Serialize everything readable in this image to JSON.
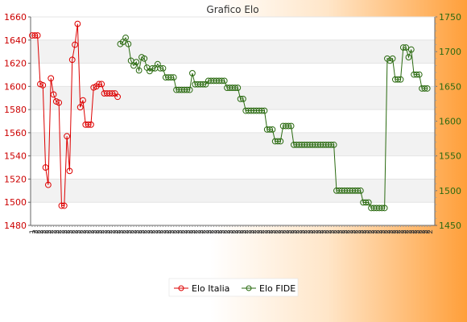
{
  "chart_data": {
    "type": "line",
    "title": "Grafico Elo",
    "x_tick_labels": [
      "1",
      "2",
      "2",
      "2",
      "2",
      "2",
      "2",
      "2",
      "2",
      "2",
      "2",
      "2",
      "2",
      "2",
      "2",
      "2",
      "2",
      "2",
      "2",
      "2",
      "2",
      "2",
      "2",
      "2",
      "2",
      "2",
      "2",
      "2",
      "2",
      "2",
      "2",
      "2",
      "2",
      "2",
      "2",
      "2",
      "2",
      "2",
      "2",
      "2",
      "2",
      "2",
      "2",
      "2",
      "2",
      "2",
      "2",
      "2",
      "2",
      "2",
      "2",
      "2",
      "2",
      "2",
      "2",
      "2",
      "2",
      "2",
      "2",
      "2",
      "2",
      "2",
      "2",
      "2",
      "2",
      "2",
      "2",
      "2",
      "2",
      "2",
      "2",
      "2",
      "2",
      "2",
      "2",
      "2",
      "2",
      "2",
      "2",
      "2",
      "2",
      "2",
      "2",
      "2",
      "2",
      "2",
      "2",
      "2",
      "2",
      "2",
      "2",
      "2",
      "2",
      "2",
      "2",
      "2",
      "2",
      "2",
      "2",
      "2",
      "2",
      "2",
      "2",
      "2",
      "2",
      "2",
      "2",
      "2",
      "2",
      "2",
      "2",
      "2",
      "2",
      "2",
      "2",
      "2",
      "2",
      "2",
      "2",
      "2",
      "2",
      "2",
      "2",
      "2",
      "2",
      "2",
      "2",
      "2",
      "2",
      "2",
      "2",
      "2",
      "2",
      "2",
      "2",
      "2",
      "2",
      "2",
      "2",
      "2",
      "2",
      "2",
      "2",
      "2",
      "2",
      "2",
      "2",
      "2",
      "2",
      "2"
    ],
    "y_left": {
      "min": 1480,
      "max": 1660,
      "ticks": [
        1480,
        1500,
        1520,
        1540,
        1560,
        1580,
        1600,
        1620,
        1640,
        1660
      ],
      "color": "#cc0000"
    },
    "y_right": {
      "min": 1450,
      "max": 1750,
      "ticks": [
        1450,
        1500,
        1550,
        1600,
        1650,
        1700,
        1750
      ],
      "color": "#2a6a10"
    },
    "grid": true,
    "legend_position": "bottom",
    "series": [
      {
        "name": "Elo Italia",
        "axis": "left",
        "color": "#dd0000",
        "points": [
          [
            0,
            1644
          ],
          [
            1,
            1644
          ],
          [
            2,
            1644
          ],
          [
            3,
            1602
          ],
          [
            4,
            1601
          ],
          [
            5,
            1530
          ],
          [
            6,
            1515
          ],
          [
            7,
            1607
          ],
          [
            8,
            1593
          ],
          [
            9,
            1587
          ],
          [
            10,
            1586
          ],
          [
            11,
            1497
          ],
          [
            12,
            1497
          ],
          [
            13,
            1557
          ],
          [
            14,
            1527
          ],
          [
            15,
            1623
          ],
          [
            16,
            1636
          ],
          [
            17,
            1654
          ],
          [
            18,
            1582
          ],
          [
            19,
            1588
          ],
          [
            20,
            1567
          ],
          [
            21,
            1567
          ],
          [
            22,
            1567
          ],
          [
            23,
            1599
          ],
          [
            24,
            1600
          ],
          [
            25,
            1602
          ],
          [
            26,
            1602
          ],
          [
            27,
            1594
          ],
          [
            28,
            1594
          ],
          [
            29,
            1594
          ],
          [
            30,
            1594
          ],
          [
            31,
            1594
          ],
          [
            32,
            1591
          ]
        ]
      },
      {
        "name": "Elo FIDE",
        "axis": "right",
        "color": "#2a6a10",
        "points": [
          [
            33,
            1711
          ],
          [
            34,
            1714
          ],
          [
            35,
            1720
          ],
          [
            36,
            1711
          ],
          [
            37,
            1687
          ],
          [
            38,
            1680
          ],
          [
            39,
            1685
          ],
          [
            40,
            1673
          ],
          [
            41,
            1692
          ],
          [
            42,
            1690
          ],
          [
            43,
            1677
          ],
          [
            44,
            1672
          ],
          [
            45,
            1676
          ],
          [
            46,
            1676
          ],
          [
            47,
            1682
          ],
          [
            48,
            1676
          ],
          [
            49,
            1676
          ],
          [
            50,
            1663
          ],
          [
            51,
            1663
          ],
          [
            52,
            1663
          ],
          [
            53,
            1663
          ],
          [
            54,
            1645
          ],
          [
            55,
            1645
          ],
          [
            56,
            1645
          ],
          [
            57,
            1645
          ],
          [
            58,
            1645
          ],
          [
            59,
            1645
          ],
          [
            60,
            1669
          ],
          [
            61,
            1653
          ],
          [
            62,
            1653
          ],
          [
            63,
            1653
          ],
          [
            64,
            1653
          ],
          [
            65,
            1653
          ],
          [
            66,
            1658
          ],
          [
            67,
            1658
          ],
          [
            68,
            1658
          ],
          [
            69,
            1658
          ],
          [
            70,
            1658
          ],
          [
            71,
            1658
          ],
          [
            72,
            1658
          ],
          [
            73,
            1648
          ],
          [
            74,
            1648
          ],
          [
            75,
            1648
          ],
          [
            76,
            1648
          ],
          [
            77,
            1648
          ],
          [
            78,
            1632
          ],
          [
            79,
            1632
          ],
          [
            80,
            1615
          ],
          [
            81,
            1615
          ],
          [
            82,
            1615
          ],
          [
            83,
            1615
          ],
          [
            84,
            1615
          ],
          [
            85,
            1615
          ],
          [
            86,
            1615
          ],
          [
            87,
            1615
          ],
          [
            88,
            1588
          ],
          [
            89,
            1588
          ],
          [
            90,
            1588
          ],
          [
            91,
            1571
          ],
          [
            92,
            1571
          ],
          [
            93,
            1571
          ],
          [
            94,
            1593
          ],
          [
            95,
            1593
          ],
          [
            96,
            1593
          ],
          [
            97,
            1593
          ],
          [
            98,
            1566
          ],
          [
            99,
            1566
          ],
          [
            100,
            1566
          ],
          [
            101,
            1566
          ],
          [
            102,
            1566
          ],
          [
            103,
            1566
          ],
          [
            104,
            1566
          ],
          [
            105,
            1566
          ],
          [
            106,
            1566
          ],
          [
            107,
            1566
          ],
          [
            108,
            1566
          ],
          [
            109,
            1566
          ],
          [
            110,
            1566
          ],
          [
            111,
            1566
          ],
          [
            112,
            1566
          ],
          [
            113,
            1566
          ],
          [
            114,
            1500
          ],
          [
            115,
            1500
          ],
          [
            116,
            1500
          ],
          [
            117,
            1500
          ],
          [
            118,
            1500
          ],
          [
            119,
            1500
          ],
          [
            120,
            1500
          ],
          [
            121,
            1500
          ],
          [
            122,
            1500
          ],
          [
            123,
            1500
          ],
          [
            124,
            1483
          ],
          [
            125,
            1483
          ],
          [
            126,
            1483
          ],
          [
            127,
            1475
          ],
          [
            128,
            1475
          ],
          [
            129,
            1475
          ],
          [
            130,
            1475
          ],
          [
            131,
            1475
          ],
          [
            132,
            1475
          ],
          [
            133,
            1690
          ],
          [
            134,
            1687
          ],
          [
            135,
            1690
          ],
          [
            136,
            1660
          ],
          [
            137,
            1660
          ],
          [
            138,
            1660
          ],
          [
            139,
            1706
          ],
          [
            140,
            1706
          ],
          [
            141,
            1692
          ],
          [
            142,
            1703
          ],
          [
            143,
            1667
          ],
          [
            144,
            1667
          ],
          [
            145,
            1667
          ],
          [
            146,
            1647
          ],
          [
            147,
            1647
          ],
          [
            148,
            1647
          ]
        ]
      }
    ]
  }
}
